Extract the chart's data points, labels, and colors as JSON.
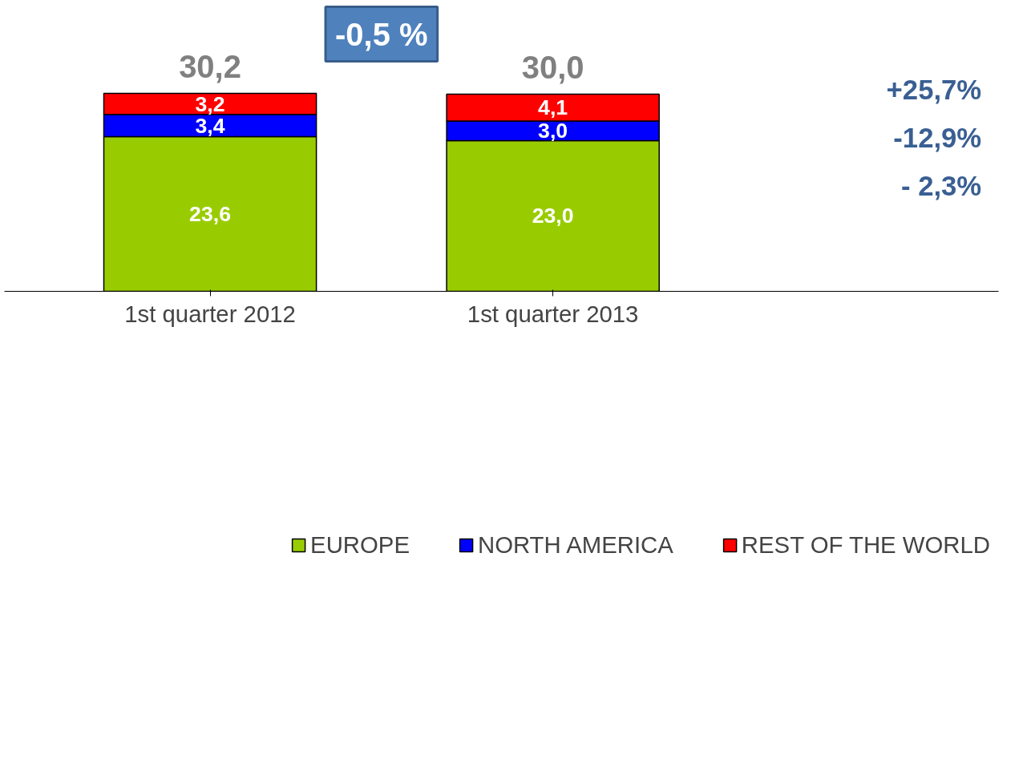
{
  "chart_data": {
    "type": "bar",
    "stacked": true,
    "categories": [
      "1st quarter 2012",
      "1st quarter 2013"
    ],
    "series": [
      {
        "name": "EUROPE",
        "color": "#99cc00",
        "values": [
          23.6,
          23.0
        ],
        "value_labels": [
          "23,6",
          "23,0"
        ]
      },
      {
        "name": "NORTH AMERICA",
        "color": "#0000ff",
        "values": [
          3.4,
          3.0
        ],
        "value_labels": [
          "3,4",
          "3,0"
        ]
      },
      {
        "name": "REST OF THE WORLD",
        "color": "#ff0000",
        "values": [
          3.2,
          4.1
        ],
        "value_labels": [
          "3,2",
          "4,1"
        ]
      }
    ],
    "totals": [
      "30,2",
      "30,0"
    ],
    "annotations": [
      "-0,5 %",
      "+25,7%",
      "-12,9%",
      "- 2,3%"
    ],
    "legend": "bottom",
    "grid": false
  }
}
